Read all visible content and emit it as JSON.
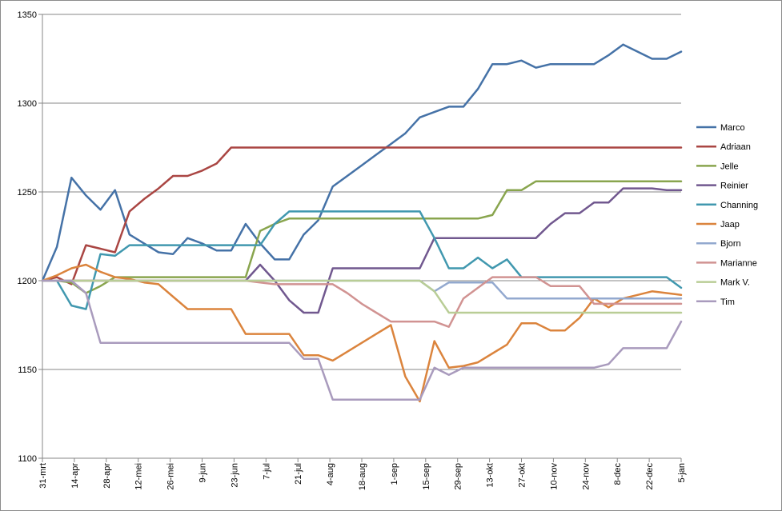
{
  "chart_data": {
    "type": "line",
    "title": "",
    "xlabel": "",
    "ylabel": "",
    "ylim": [
      1100,
      1350
    ],
    "yticks": [
      1100,
      1150,
      1200,
      1250,
      1300,
      1350
    ],
    "grid": "horizontal",
    "legend_position": "right",
    "x_tick_labels": [
      "31-mrt",
      "14-apr",
      "28-apr",
      "12-mei",
      "26-mei",
      "9-jun",
      "23-jun",
      "7-jul",
      "21-jul",
      "4-aug",
      "18-aug",
      "1-sep",
      "15-sep",
      "29-sep",
      "13-okt",
      "27-okt",
      "10-nov",
      "24-nov",
      "8-dec",
      "22-dec",
      "5-jan"
    ],
    "x": [
      "31-mrt",
      "7-apr",
      "11-apr",
      "14-apr",
      "17-apr",
      "21-apr",
      "28-apr",
      "5-mei",
      "12-mei",
      "19-mei",
      "26-mei",
      "2-jun",
      "9-jun",
      "16-jun",
      "23-jun",
      "30-jun",
      "3-jul",
      "7-jul",
      "10-jul",
      "14-jul",
      "21-jul",
      "28-jul",
      "4-aug",
      "11-aug",
      "18-aug",
      "25-aug",
      "1-sep",
      "8-sep",
      "15-sep",
      "22-sep",
      "29-sep",
      "6-okt",
      "13-okt",
      "20-okt",
      "27-okt",
      "3-nov",
      "10-nov",
      "17-nov",
      "24-nov",
      "1-dec",
      "8-dec",
      "15-dec",
      "22-dec",
      "29-dec",
      "5-jan"
    ],
    "series": [
      {
        "name": "Marco",
        "color": "#4572a7",
        "values": [
          1200,
          1219,
          1258,
          1248,
          1240,
          1251,
          1226,
          1221,
          1216,
          1215,
          1224,
          1221,
          1217,
          1217,
          1232,
          1221,
          1212,
          1212,
          1226,
          1234,
          1253,
          1259,
          1265,
          1271,
          1277,
          1283,
          1292,
          1295,
          1298,
          1298,
          1308,
          1322,
          1322,
          1324,
          1320,
          1322,
          1322,
          1322,
          1322,
          1327,
          1333,
          1329,
          1325,
          1325,
          1329
        ]
      },
      {
        "name": "Adriaan",
        "color": "#aa4643",
        "values": [
          1200,
          1202,
          1198,
          1220,
          1218,
          1216,
          1239,
          1246,
          1252,
          1259,
          1259,
          1262,
          1266,
          1275,
          1275,
          1275,
          1275,
          1275,
          1275,
          1275,
          1275,
          1275,
          1275,
          1275,
          1275,
          1275,
          1275,
          1275,
          1275,
          1275,
          1275,
          1275,
          1275,
          1275,
          1275,
          1275,
          1275,
          1275,
          1275,
          1275,
          1275,
          1275,
          1275,
          1275,
          1275
        ]
      },
      {
        "name": "Jelle",
        "color": "#89a54e",
        "values": [
          1200,
          1200,
          1199,
          1193,
          1197,
          1202,
          1202,
          1202,
          1202,
          1202,
          1202,
          1202,
          1202,
          1202,
          1202,
          1228,
          1232,
          1235,
          1235,
          1235,
          1235,
          1235,
          1235,
          1235,
          1235,
          1235,
          1235,
          1235,
          1235,
          1235,
          1235,
          1237,
          1251,
          1251,
          1256,
          1256,
          1256,
          1256,
          1256,
          1256,
          1256,
          1256,
          1256,
          1256,
          1256
        ]
      },
      {
        "name": "Reinier",
        "color": "#71588f",
        "values": [
          1200,
          1200,
          1200,
          1200,
          1200,
          1200,
          1200,
          1200,
          1200,
          1200,
          1200,
          1200,
          1200,
          1200,
          1200,
          1209,
          1200,
          1189,
          1182,
          1182,
          1207,
          1207,
          1207,
          1207,
          1207,
          1207,
          1207,
          1224,
          1224,
          1224,
          1224,
          1224,
          1224,
          1224,
          1224,
          1232,
          1238,
          1238,
          1244,
          1244,
          1252,
          1252,
          1252,
          1251,
          1251
        ]
      },
      {
        "name": "Channing",
        "color": "#4198af",
        "values": [
          1200,
          1200,
          1186,
          1184,
          1215,
          1214,
          1220,
          1220,
          1220,
          1220,
          1220,
          1220,
          1220,
          1220,
          1220,
          1220,
          1232,
          1239,
          1239,
          1239,
          1239,
          1239,
          1239,
          1239,
          1239,
          1239,
          1239,
          1224,
          1207,
          1207,
          1213,
          1207,
          1212,
          1202,
          1202,
          1202,
          1202,
          1202,
          1202,
          1202,
          1202,
          1202,
          1202,
          1202,
          1196
        ]
      },
      {
        "name": "Jaap",
        "color": "#db843d",
        "values": [
          1200,
          1203,
          1207,
          1209,
          1205,
          1202,
          1201,
          1199,
          1198,
          1191,
          1184,
          1184,
          1184,
          1184,
          1170,
          1170,
          1170,
          1170,
          1158,
          1158,
          1155,
          1160,
          1165,
          1170,
          1175,
          1146,
          1132,
          1166,
          1151,
          1152,
          1154,
          1159,
          1164,
          1176,
          1176,
          1172,
          1172,
          1179,
          1190,
          1185,
          1190,
          1192,
          1194,
          1193,
          1192
        ]
      },
      {
        "name": "Bjorn",
        "color": "#93a9cf",
        "values": [
          1200,
          1200,
          1200,
          1200,
          1200,
          1200,
          1200,
          1200,
          1200,
          1200,
          1200,
          1200,
          1200,
          1200,
          1200,
          1200,
          1200,
          1200,
          1200,
          1200,
          1200,
          1200,
          1200,
          1200,
          1200,
          1200,
          1200,
          1194,
          1199,
          1199,
          1199,
          1199,
          1190,
          1190,
          1190,
          1190,
          1190,
          1190,
          1190,
          1190,
          1190,
          1190,
          1190,
          1190,
          1190
        ]
      },
      {
        "name": "Marianne",
        "color": "#d19392",
        "values": [
          1200,
          1200,
          1200,
          1200,
          1200,
          1200,
          1200,
          1200,
          1200,
          1200,
          1200,
          1200,
          1200,
          1200,
          1200,
          1199,
          1198,
          1198,
          1198,
          1198,
          1198,
          1193,
          1187,
          1182,
          1177,
          1177,
          1177,
          1177,
          1174,
          1190,
          1196,
          1202,
          1202,
          1202,
          1202,
          1197,
          1197,
          1197,
          1187,
          1187,
          1187,
          1187,
          1187,
          1187,
          1187
        ]
      },
      {
        "name": "Mark V.",
        "color": "#b9cd96",
        "values": [
          1200,
          1200,
          1200,
          1200,
          1200,
          1200,
          1200,
          1200,
          1200,
          1200,
          1200,
          1200,
          1200,
          1200,
          1200,
          1200,
          1200,
          1200,
          1200,
          1200,
          1200,
          1200,
          1200,
          1200,
          1200,
          1200,
          1200,
          1194,
          1182,
          1182,
          1182,
          1182,
          1182,
          1182,
          1182,
          1182,
          1182,
          1182,
          1182,
          1182,
          1182,
          1182,
          1182,
          1182,
          1182
        ]
      },
      {
        "name": "Tim",
        "color": "#a99bbd",
        "values": [
          1200,
          1200,
          1200,
          1193,
          1165,
          1165,
          1165,
          1165,
          1165,
          1165,
          1165,
          1165,
          1165,
          1165,
          1165,
          1165,
          1165,
          1165,
          1156,
          1156,
          1133,
          1133,
          1133,
          1133,
          1133,
          1133,
          1133,
          1151,
          1147,
          1151,
          1151,
          1151,
          1151,
          1151,
          1151,
          1151,
          1151,
          1151,
          1151,
          1153,
          1162,
          1162,
          1162,
          1162,
          1177
        ]
      }
    ]
  }
}
